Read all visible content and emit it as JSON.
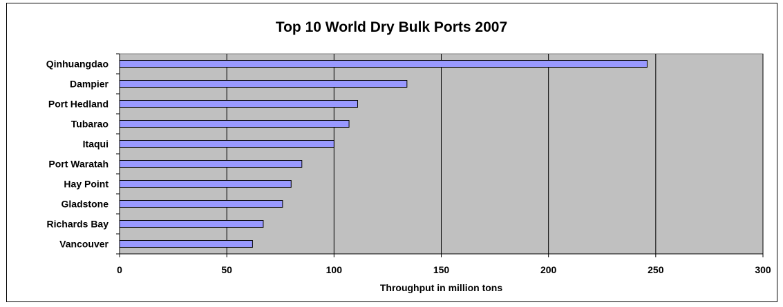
{
  "chart_data": {
    "type": "bar",
    "orientation": "horizontal",
    "title": "Top 10 World Dry Bulk Ports 2007",
    "xlabel": "Throughput in million tons",
    "ylabel": "",
    "categories": [
      "Qinhuangdao",
      "Dampier",
      "Port Hedland",
      "Tubarao",
      "Itaqui",
      "Port Waratah",
      "Hay Point",
      "Gladstone",
      "Richards Bay",
      "Vancouver"
    ],
    "values": [
      246,
      134,
      111,
      107,
      100,
      85,
      80,
      76,
      67,
      62
    ],
    "xlim": [
      0,
      300
    ],
    "xticks": [
      "0",
      "50",
      "100",
      "150",
      "200",
      "250",
      "300"
    ],
    "grid": true,
    "legend": "none",
    "colors": {
      "bar_fill": "#9999ff",
      "bar_stroke": "#000000",
      "plot_background": "#c0c0c0",
      "gridline": "#000000"
    }
  }
}
